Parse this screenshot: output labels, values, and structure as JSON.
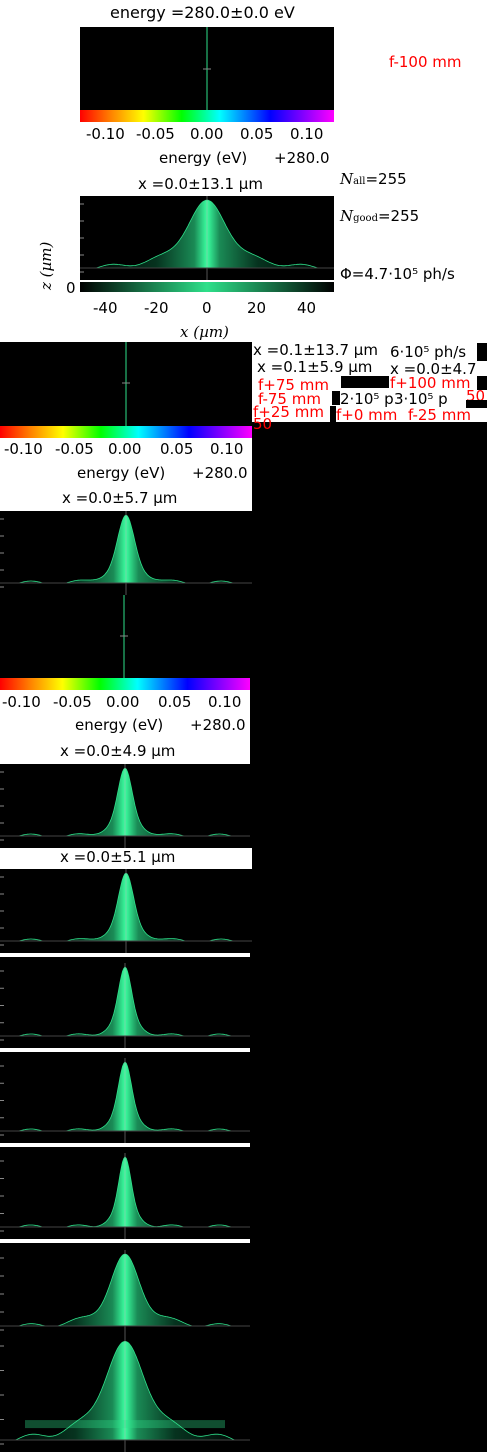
{
  "main_figure": {
    "energy_title": "energy =280.0±0.0 eV",
    "focus_label": "f-100 mm",
    "colorbar_ticks": [
      "-0.10",
      "-0.05",
      "0.00",
      "0.05",
      "0.10"
    ],
    "colorbar_label": "energy (eV)",
    "colorbar_offset": "+280.0",
    "x_title": "x =0.0±13.1 µm",
    "n_all": "N",
    "n_all_sub": "all",
    "n_all_value": "=255",
    "n_good": "N",
    "n_good_sub": "good",
    "n_good_value": "=255",
    "flux": "Φ=4.7·10⁵ ph/s",
    "z_label": "z (µm)",
    "z_tick": "0",
    "x_ticks": [
      "-40",
      "-20",
      "0",
      "20",
      "40"
    ],
    "x_label": "x (µm)"
  },
  "overlay_labels": {
    "x_title_1": "x =0.1±13.7 µm",
    "x_title_2": "x =0.1±5.9 µm",
    "x_title_3": "x =0.0±4.7",
    "flux_1": "6·10⁵ ph/s",
    "flux_2": "2·10⁵ p",
    "flux_3": "3·10⁵ p",
    "focus_1": "f+75 mm",
    "focus_2": "f+100 mm",
    "focus_3": "f-75 mm",
    "focus_4": "f+25 mm",
    "focus_5": "f+0 mm",
    "focus_6": "f-25 mm",
    "focus_7": "50",
    "focus_8": "50"
  },
  "second_figure": {
    "colorbar_ticks": [
      "-0.10",
      "-0.05",
      "0.00",
      "0.05",
      "0.10"
    ],
    "colorbar_label": "energy (eV)",
    "colorbar_offset": "+280.0",
    "x_title": "x =0.0±5.7 µm"
  },
  "third_figure": {
    "colorbar_ticks": [
      "-0.10",
      "-0.05",
      "0.00",
      "0.05",
      "0.10"
    ],
    "colorbar_label": "energy (eV)",
    "colorbar_offset": "+280.0",
    "x_title": "x =0.0±4.9 µm"
  },
  "fourth_figure": {
    "x_title": "x =0.0±5.1 µm"
  },
  "chart_data": [
    {
      "type": "heatmap",
      "title": "energy =280.0±0.0 eV",
      "xlabel": "energy (eV)",
      "xlim": [
        -0.12,
        0.12
      ],
      "colormap": "hsv"
    },
    {
      "type": "area",
      "title": "x =0.0±13.1 µm",
      "xlabel": "x (µm)",
      "ylabel": "z (µm)",
      "xlim": [
        -50,
        50
      ],
      "x_ticks": [
        -40,
        -20,
        0,
        20,
        40
      ],
      "profile_width_um": 13.1
    }
  ],
  "colors": {
    "beam_green": "#2ee08a",
    "focus_red": "#ff0000",
    "background": "#000000",
    "panel": "#ffffff"
  }
}
